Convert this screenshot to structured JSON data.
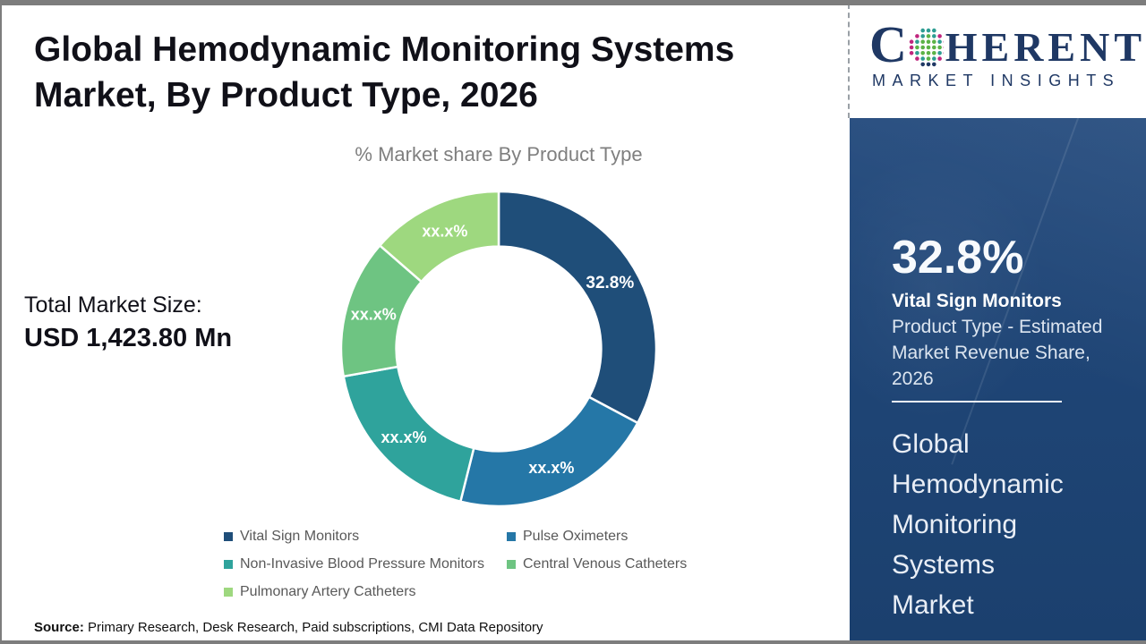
{
  "frame": {
    "border_color": "#7d7d7d",
    "background": "#ffffff"
  },
  "header": {
    "title_line1": "Global Hemodynamic Monitoring Systems",
    "title_line2": "Market, By Product Type, 2026"
  },
  "left_panel": {
    "total_label": "Total Market Size:",
    "total_value": "USD 1,423.80 Mn"
  },
  "chart_data": {
    "type": "pie",
    "subtype": "donut",
    "title": "% Market share By Product Type",
    "categories": [
      "Vital Sign Monitors",
      "Pulse Oximeters",
      "Non-Invasive Blood Pressure Monitors",
      "Central Venous Catheters",
      "Pulmonary Artery Catheters"
    ],
    "slice_labels": [
      "32.8%",
      "xx.x%",
      "xx.x%",
      "xx.x%",
      "xx.x%"
    ],
    "values_pct_estimated": [
      32.8,
      21.1,
      18.3,
      14.2,
      13.6
    ],
    "colors": [
      "#1F4E79",
      "#2577A7",
      "#2FA39C",
      "#6EC482",
      "#9ED87F"
    ],
    "start_angle_deg": 0,
    "direction": "clockwise",
    "inner_radius_ratio": 0.65,
    "legend_position": "bottom",
    "label_color": "#ffffff"
  },
  "source": {
    "prefix": "Source:",
    "text": " Primary Research, Desk Research, Paid subscriptions, CMI Data Repository"
  },
  "sidebar": {
    "logo": {
      "prefix": "C",
      "rest": "HERENT",
      "tagline": "MARKET INSIGHTS",
      "navy": "#1f3864",
      "globe_colors": {
        "green": "#5cb347",
        "teal": "#2e9d92",
        "pink": "#c0267e",
        "navy": "#1f3864"
      }
    },
    "stat_value": "32.8%",
    "stat_title": "Vital Sign Monitors",
    "stat_desc_lines": [
      "Product Type - Estimated",
      "Market Revenue Share,",
      "2026"
    ],
    "market_title_lines": [
      "Global",
      "Hemodynamic",
      "Monitoring",
      "Systems",
      "Market"
    ]
  }
}
